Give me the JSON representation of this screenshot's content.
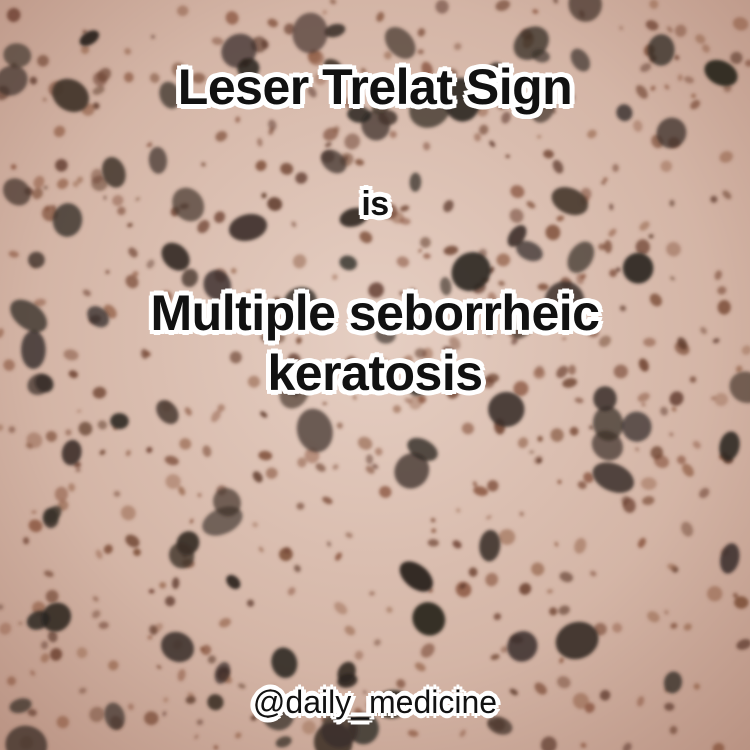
{
  "caption": {
    "headline": "Leser Trelat Sign",
    "connector": "is",
    "finding_line1": "Multiple seborrheic",
    "finding_line2": "keratosis"
  },
  "watermark": {
    "handle": "@daily_medicine"
  },
  "colors": {
    "skin_base": "#c9a99a",
    "lesion_dark": "#2e2620",
    "lesion_brown": "#7a4a35",
    "text": "#111111",
    "text_outline": "#ffffff"
  }
}
